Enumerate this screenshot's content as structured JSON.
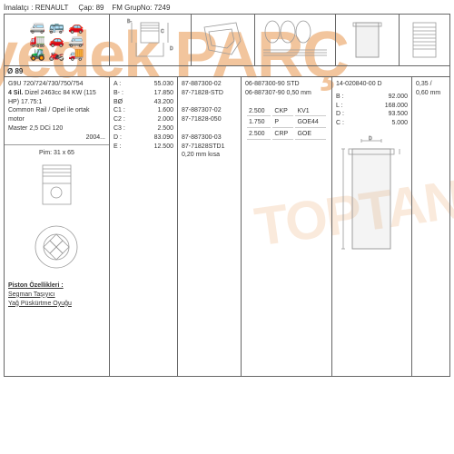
{
  "colors": {
    "border": "#666666",
    "text": "#333333",
    "watermark": "rgba(230,140,60,0.5)"
  },
  "header": {
    "manufacturer_label": "İmalatçı :",
    "manufacturer": "RENAULT",
    "diameter_label": "Çap:",
    "diameter": "89",
    "group_label": "FM GrupNo:",
    "group": "7249"
  },
  "watermark": "yedek PARÇ",
  "watermark2": "TOPTAN",
  "diameter_row": "Ø  89",
  "col1": {
    "engine": "G9U 720/724/730/750/754",
    "cyl_label": "4 Sil.",
    "desc": "Dizel 2463cc 84 KW (115 HP) 17.75:1",
    "rail": "Common Rail / Opel ile ortak motor",
    "model": "Master 2,5 DCi 120",
    "year": "2004...",
    "pin": "Pim: 31 x 65",
    "piston_props_title": "Piston Özellikleri :",
    "piston_props": [
      "Segman Taşıyıcı",
      "Yağ Püskürtme Oyuğu"
    ]
  },
  "col2": {
    "rows": [
      {
        "k": "A :",
        "v": "55.030"
      },
      {
        "k": "B- :",
        "v": "17.850"
      },
      {
        "k": "BØ",
        "v": "43.200"
      },
      {
        "k": "C1 :",
        "v": "1.600"
      },
      {
        "k": "C2 :",
        "v": "2.000"
      },
      {
        "k": "C3 :",
        "v": "2.500"
      },
      {
        "k": "D :",
        "v": "83.090"
      },
      {
        "k": "E :",
        "v": "12.500"
      }
    ]
  },
  "col3": {
    "parts": [
      "87-887300-02",
      "87-71828-STD",
      "",
      "87-887307-02",
      "87-71828-050",
      "",
      "87-887300-03",
      "87-71828STD1",
      "0,20 mm kısa"
    ]
  },
  "col4": {
    "top": [
      "06-887300-90 STD",
      "06-887307-90 0,50 mm"
    ],
    "specs": [
      {
        "a": "2.500",
        "b": "CKP",
        "c": "KV1"
      },
      {
        "a": "1.750",
        "b": "P",
        "c": "GOE44"
      },
      {
        "a": "2.500",
        "b": "CRP",
        "c": "GOE"
      }
    ]
  },
  "col5": {
    "part": "14-020840-00 D",
    "dims": [
      {
        "k": "B :",
        "v": "92.000"
      },
      {
        "k": "L :",
        "v": "168.000"
      },
      {
        "k": "D :",
        "v": "93.500"
      },
      {
        "k": "C :",
        "v": "5.000"
      }
    ]
  },
  "col6": {
    "value": "0,35 / 0,60 mm"
  }
}
